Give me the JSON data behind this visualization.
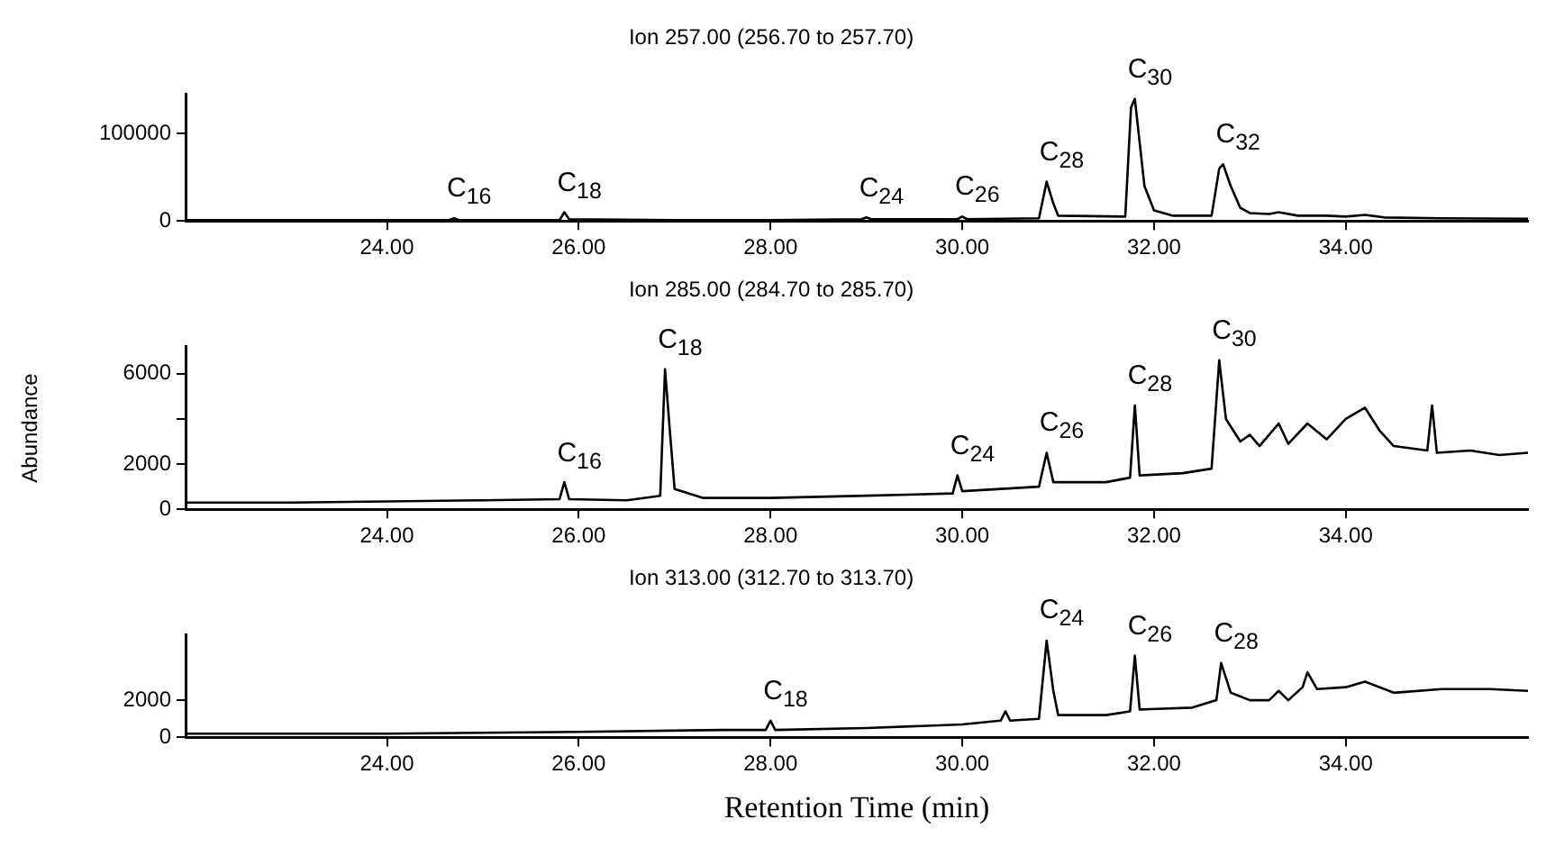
{
  "chart_data": [
    {
      "type": "line",
      "title": "Ion 257.00 (256.70 to 257.70)",
      "color": "#000000",
      "marker": "none",
      "grid": false,
      "legend": false,
      "x": [
        21.9,
        23,
        24,
        24.65,
        24.7,
        24.75,
        25.8,
        25.85,
        25.9,
        27,
        28,
        28.95,
        29.0,
        29.05,
        29.95,
        30.0,
        30.05,
        30.8,
        30.88,
        30.95,
        31.0,
        31.7,
        31.76,
        31.8,
        31.85,
        31.9,
        32.0,
        32.2,
        32.6,
        32.68,
        32.72,
        32.8,
        32.9,
        33.0,
        33.2,
        33.3,
        33.5,
        33.8,
        34.0,
        34.2,
        34.4,
        35.0,
        35.9
      ],
      "values": [
        1000,
        1000,
        1000,
        1000,
        3000,
        1000,
        1000,
        10000,
        2000,
        1000,
        1000,
        2000,
        4000,
        2000,
        2000,
        5000,
        2000,
        3000,
        45000,
        20000,
        6000,
        5000,
        130000,
        140000,
        90000,
        40000,
        12000,
        6000,
        6000,
        60000,
        65000,
        40000,
        15000,
        9000,
        8000,
        10000,
        6000,
        6000,
        5000,
        7000,
        4000,
        3000,
        2500
      ],
      "xlim": [
        21.9,
        35.9
      ],
      "xticks": [
        {
          "value": 24,
          "label": "24.00"
        },
        {
          "value": 26,
          "label": "26.00"
        },
        {
          "value": 28,
          "label": "28.00"
        },
        {
          "value": 30,
          "label": "30.00"
        },
        {
          "value": 32,
          "label": "32.00"
        },
        {
          "value": 34,
          "label": "34.00"
        }
      ],
      "ylim": [
        0,
        145000
      ],
      "yticks": [
        0,
        100000
      ],
      "annotations": [
        {
          "text": "C$_{16}$",
          "x": 24.7,
          "y": 2500
        },
        {
          "text": "C$_{18}$",
          "x": 25.85,
          "y": 10000
        },
        {
          "text": "C$_{24}$",
          "x": 29.0,
          "y": 3500
        },
        {
          "text": "C$_{26}$",
          "x": 30.0,
          "y": 4500
        },
        {
          "text": "C$_{28}$",
          "x": 30.88,
          "y": 45000
        },
        {
          "text": "C$_{30}$",
          "x": 31.8,
          "y": 140000
        },
        {
          "text": "C$_{32}$",
          "x": 32.72,
          "y": 65000
        }
      ]
    },
    {
      "type": "line",
      "title": "Ion 285.00 (284.70 to 285.70)",
      "ylabel": "Abundance",
      "color": "#000000",
      "marker": "none",
      "grid": false,
      "legend": false,
      "x": [
        21.9,
        23,
        24,
        25,
        25.8,
        25.85,
        25.9,
        26.5,
        26.85,
        26.9,
        26.95,
        27.0,
        27.3,
        28,
        29,
        29.9,
        29.95,
        30.0,
        30.8,
        30.88,
        30.95,
        31.5,
        31.75,
        31.8,
        31.85,
        32.3,
        32.6,
        32.68,
        32.75,
        32.9,
        33.0,
        33.1,
        33.3,
        33.4,
        33.6,
        33.8,
        34.0,
        34.2,
        34.35,
        34.5,
        34.85,
        34.9,
        34.95,
        35.3,
        35.6,
        35.9
      ],
      "values": [
        300,
        300,
        350,
        400,
        450,
        1200,
        450,
        400,
        600,
        6200,
        3500,
        900,
        500,
        500,
        600,
        700,
        1500,
        800,
        1000,
        2500,
        1200,
        1200,
        1400,
        4600,
        1500,
        1600,
        1800,
        6600,
        4000,
        3000,
        3300,
        2800,
        3800,
        2900,
        3800,
        3100,
        4000,
        4500,
        3500,
        2800,
        2600,
        4600,
        2500,
        2600,
        2400,
        2500
      ],
      "xlim": [
        21.9,
        35.9
      ],
      "xticks": [
        {
          "value": 24,
          "label": "24.00"
        },
        {
          "value": 26,
          "label": "26.00"
        },
        {
          "value": 28,
          "label": "28.00"
        },
        {
          "value": 30,
          "label": "30.00"
        },
        {
          "value": 32,
          "label": "32.00"
        },
        {
          "value": 34,
          "label": "34.00"
        }
      ],
      "ylim": [
        0,
        7200
      ],
      "yticks": [
        0,
        2000,
        {
          "value": 4000,
          "label": null
        },
        6000
      ],
      "annotations": [
        {
          "text": "C$_{16}$",
          "x": 25.85,
          "y": 1200
        },
        {
          "text": "C$_{18}$",
          "x": 26.9,
          "y": 6200
        },
        {
          "text": "C$_{24}$",
          "x": 29.95,
          "y": 1500
        },
        {
          "text": "C$_{26}$",
          "x": 30.88,
          "y": 2500
        },
        {
          "text": "C$_{28}$",
          "x": 31.8,
          "y": 4600
        },
        {
          "text": "C$_{30}$",
          "x": 32.68,
          "y": 6600
        }
      ]
    },
    {
      "type": "line",
      "title": "Ion 313.00 (312.70 to 313.70)",
      "xlabel": "Retention Time (min)",
      "color": "#000000",
      "marker": "none",
      "grid": false,
      "legend": false,
      "x": [
        21.9,
        23,
        24,
        26,
        27.5,
        27.95,
        28.0,
        28.05,
        29,
        30,
        30.4,
        30.45,
        30.5,
        30.8,
        30.88,
        30.95,
        31.0,
        31.5,
        31.75,
        31.8,
        31.85,
        32.4,
        32.65,
        32.7,
        32.8,
        33.0,
        33.2,
        33.3,
        33.4,
        33.55,
        33.6,
        33.7,
        34.0,
        34.2,
        34.5,
        35.0,
        35.5,
        35.9
      ],
      "values": [
        200,
        200,
        200,
        300,
        400,
        400,
        900,
        400,
        500,
        700,
        900,
        1400,
        900,
        1000,
        5200,
        2500,
        1200,
        1200,
        1400,
        4400,
        1500,
        1600,
        2000,
        4000,
        2400,
        2000,
        2000,
        2500,
        2000,
        2700,
        3500,
        2600,
        2700,
        3000,
        2400,
        2600,
        2600,
        2500
      ],
      "xlim": [
        21.9,
        35.9
      ],
      "xticks": [
        {
          "value": 24,
          "label": "24.00"
        },
        {
          "value": 26,
          "label": "26.00"
        },
        {
          "value": 28,
          "label": "28.00"
        },
        {
          "value": 30,
          "label": "30.00"
        },
        {
          "value": 32,
          "label": "32.00"
        },
        {
          "value": 34,
          "label": "34.00"
        }
      ],
      "ylim": [
        0,
        5500
      ],
      "yticks": [
        0,
        2000
      ],
      "annotations": [
        {
          "text": "C$_{18}$",
          "x": 28.0,
          "y": 900
        },
        {
          "text": "C$_{24}$",
          "x": 30.88,
          "y": 5200
        },
        {
          "text": "C$_{26}$",
          "x": 31.8,
          "y": 4400
        },
        {
          "text": "C$_{28}$",
          "x": 32.7,
          "y": 4000
        }
      ]
    }
  ]
}
